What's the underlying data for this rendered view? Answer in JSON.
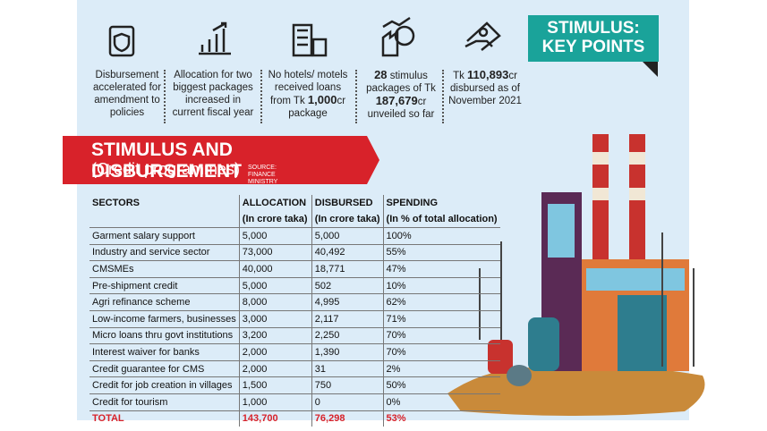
{
  "key_points": [
    {
      "parts": [
        "Disbursement accelerated for amendment to policies"
      ]
    },
    {
      "parts": [
        "Allocation for two biggest packages increased in current fiscal year"
      ]
    },
    {
      "parts": [
        "No hotels/ motels received loans from Tk ",
        "1,000",
        "cr package"
      ]
    },
    {
      "parts": [
        "28",
        " stimulus packages of Tk ",
        "187,679",
        "cr unveiled so far"
      ]
    },
    {
      "parts": [
        "Tk ",
        "110,893",
        "cr disbursed as of November 2021"
      ]
    }
  ],
  "banner": "STIMULUS: KEY POINTS",
  "section": {
    "title": "STIMULUS AND DISBURSEMENT",
    "subtitle": "(Credit programmes)",
    "source": "SOURCE: FINANCE MINISTRY"
  },
  "table": {
    "header": [
      "SECTORS",
      "ALLOCATION",
      "DISBURSED",
      "SPENDING"
    ],
    "units": [
      "(In crore taka)",
      "(In crore taka)",
      "(In % of total allocation)"
    ],
    "rows": [
      [
        "Garment salary support",
        "5,000",
        "5,000",
        "100%"
      ],
      [
        "Industry and service sector",
        "73,000",
        "40,492",
        "55%"
      ],
      [
        "CMSMEs",
        "40,000",
        "18,771",
        "47%"
      ],
      [
        "Pre-shipment credit",
        "5,000",
        "502",
        "10%"
      ],
      [
        "Agri refinance  scheme",
        "8,000",
        "4,995",
        "62%"
      ],
      [
        "Low-income farmers, businesses",
        "3,000",
        "2,117",
        "71%"
      ],
      [
        "Micro loans thru govt institutions",
        "3,200",
        "2,250",
        "70%"
      ],
      [
        "Interest waiver for banks",
        "2,000",
        "1,390",
        "70%"
      ],
      [
        "Credit guarantee for CMS",
        "2,000",
        "31",
        "2%"
      ],
      [
        "Credit for job creation in villages",
        "1,500",
        "750",
        "50%"
      ],
      [
        "Credit for tourism",
        "1,000",
        "0",
        "0%"
      ]
    ],
    "total": [
      "TOTAL",
      "143,700",
      "76,298",
      "53%"
    ]
  }
}
